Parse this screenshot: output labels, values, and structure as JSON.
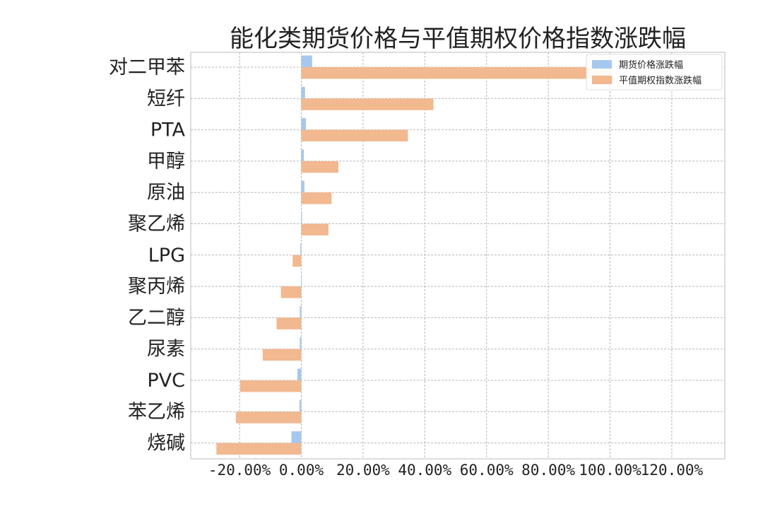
{
  "chart_data": {
    "type": "bar",
    "orientation": "horizontal",
    "title": "能化类期货价格与平值期权价格指数涨跌幅",
    "categories": [
      "对二甲苯",
      "短纤",
      "PTA",
      "甲醇",
      "原油",
      "聚乙烯",
      "LPG",
      "聚丙烯",
      "乙二醇",
      "尿素",
      "PVC",
      "苯乙烯",
      "烧碱"
    ],
    "series": [
      {
        "name": "期货价格涨跌幅",
        "color": "#a6c8ee",
        "values": [
          3.5,
          1.2,
          1.5,
          0.8,
          1.0,
          0.1,
          -0.3,
          -0.1,
          -0.5,
          -0.5,
          -1.3,
          -0.6,
          -3.2
        ]
      },
      {
        "name": "平值期权指数涨跌幅",
        "color": "#f2b890",
        "values": [
          101.0,
          42.8,
          34.5,
          12.0,
          9.8,
          8.8,
          -2.8,
          -6.6,
          -8.0,
          -12.5,
          -19.8,
          -21.2,
          -27.5
        ]
      }
    ],
    "xticks": [
      "-20.00%",
      "0.00%",
      "20.00%",
      "40.00%",
      "60.00%",
      "80.00%",
      "100.00%",
      "120.00%"
    ],
    "xtick_values": [
      -20,
      0,
      20,
      40,
      60,
      80,
      100,
      120
    ],
    "xlim": [
      -36,
      138
    ],
    "grid": true,
    "legend_position": "top-right"
  }
}
